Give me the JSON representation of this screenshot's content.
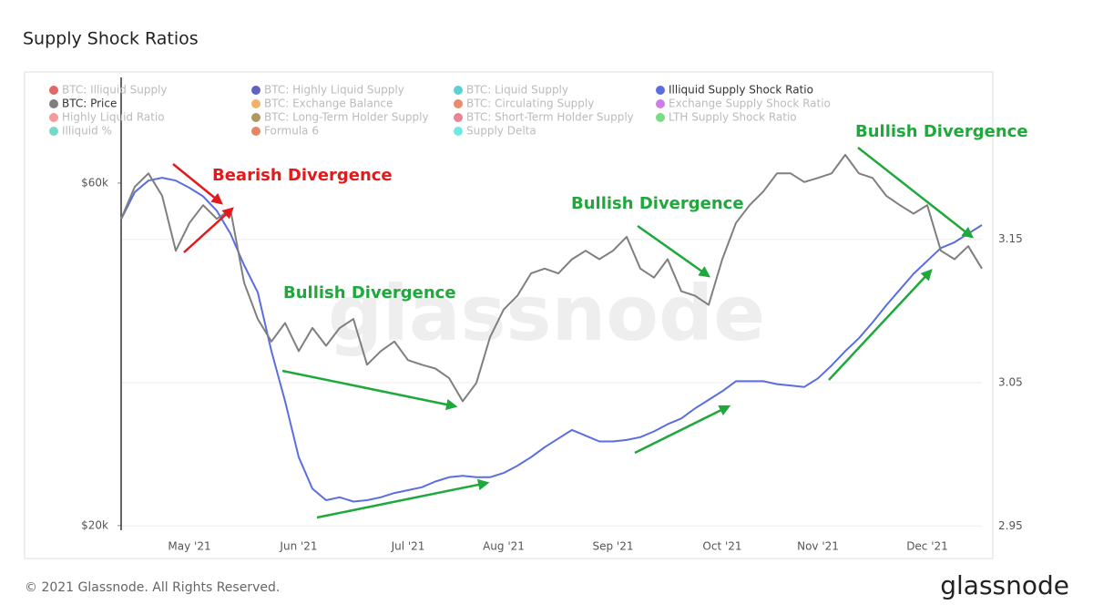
{
  "chart_data": {
    "type": "line",
    "title": "Supply Shock Ratios",
    "categories": [
      null,
      null,
      null,
      null,
      null,
      "May '21",
      null,
      null,
      null,
      null,
      null,
      null,
      null,
      "Jun '21",
      null,
      null,
      null,
      null,
      null,
      null,
      null,
      "Jul '21",
      null,
      null,
      null,
      null,
      null,
      null,
      "Aug '21",
      null,
      null,
      null,
      null,
      null,
      null,
      null,
      "Sep '21",
      null,
      null,
      null,
      null,
      null,
      null,
      null,
      "Oct '21",
      null,
      null,
      null,
      null,
      null,
      null,
      "Nov '21",
      null,
      null,
      null,
      null,
      null,
      null,
      null,
      "Dec '21",
      null,
      null,
      null,
      null
    ],
    "series": [
      {
        "name": "BTC: Illiquid Supply",
        "color": "#d62728",
        "hidden": true
      },
      {
        "name": "BTC: Highly Liquid Supply",
        "color": "#1f1fa8",
        "hidden": true
      },
      {
        "name": "BTC: Liquid Supply",
        "color": "#17bec0",
        "hidden": true
      },
      {
        "name": "Illiquid Supply Shock Ratio",
        "color": "#5b6ee1",
        "axis": "y2",
        "values": [
          3.164,
          3.183,
          3.191,
          3.193,
          3.191,
          3.186,
          3.18,
          3.17,
          3.154,
          3.132,
          3.113,
          3.072,
          3.037,
          2.998,
          2.976,
          2.968,
          2.97,
          2.967,
          2.968,
          2.97,
          2.973,
          2.975,
          2.977,
          2.981,
          2.984,
          2.985,
          2.984,
          2.984,
          2.987,
          2.992,
          2.998,
          3.005,
          3.011,
          3.017,
          3.013,
          3.009,
          3.009,
          3.01,
          3.012,
          3.016,
          3.021,
          3.025,
          3.032,
          3.038,
          3.044,
          3.051,
          3.051,
          3.051,
          3.049,
          3.048,
          3.047,
          3.053,
          3.062,
          3.072,
          3.081,
          3.092,
          3.104,
          3.115,
          3.126,
          3.135,
          3.144,
          3.148,
          3.154,
          3.16
        ]
      },
      {
        "name": "BTC: Price",
        "color": "#7f7f7f",
        "axis": "y",
        "values": [
          53500,
          59300,
          61900,
          57600,
          48300,
          52800,
          55900,
          53500,
          55100,
          43600,
          38800,
          36100,
          38300,
          35000,
          37700,
          35600,
          37700,
          38800,
          33500,
          35000,
          36100,
          34000,
          33500,
          33100,
          32100,
          29800,
          31600,
          36600,
          40000,
          41800,
          44900,
          45600,
          44900,
          47000,
          48300,
          47000,
          48300,
          50500,
          45600,
          44300,
          47000,
          42400,
          41800,
          40600,
          47000,
          52800,
          55900,
          58400,
          61900,
          61900,
          60200,
          61000,
          61900,
          65700,
          61900,
          61000,
          57600,
          55900,
          54400,
          55900,
          48300,
          47000,
          49000,
          45600
        ]
      },
      {
        "name": "BTC: Exchange Balance",
        "color": "#f28e2b",
        "hidden": true
      },
      {
        "name": "BTC: Circulating Supply",
        "color": "#e15a2b",
        "hidden": true
      },
      {
        "name": "Exchange Supply Shock Ratio",
        "color": "#b845e0",
        "hidden": true
      },
      {
        "name": "Highly Liquid Ratio",
        "color": "#f07070",
        "hidden": true
      },
      {
        "name": "BTC: Long-Term Holder Supply",
        "color": "#8c6d1f",
        "hidden": true
      },
      {
        "name": "BTC: Short-Term Holder Supply",
        "color": "#e0506a",
        "hidden": true
      },
      {
        "name": "LTH Supply Shock Ratio",
        "color": "#3fd04f",
        "hidden": true
      },
      {
        "name": "Illiquid %",
        "color": "#3cc9b0",
        "hidden": true
      },
      {
        "name": "Formula 6",
        "color": "#d9531e",
        "hidden": true
      },
      {
        "name": "Supply Delta",
        "color": "#2ee0d8",
        "hidden": true
      }
    ],
    "ylog": true,
    "ylim": [
      19700,
      84200
    ],
    "yticks": [
      {
        "value": 20000,
        "label": "$20k"
      },
      {
        "value": 60000,
        "label": "$60k"
      }
    ],
    "y2lim": [
      2.947,
      3.263
    ],
    "y2ticks": [
      2.95,
      3.05,
      3.15
    ],
    "grid": true,
    "annotations": [
      {
        "text": "Bearish Divergence",
        "color": "#e31a1c"
      },
      {
        "text": "Bullish Divergence",
        "color": "#1fa83c"
      },
      {
        "text": "Bullish Divergence",
        "color": "#1fa83c"
      },
      {
        "text": "Bullish Divergence",
        "color": "#1fa83c"
      }
    ],
    "watermark": "glassnode"
  },
  "footer": {
    "copyright": "© 2021 Glassnode. All Rights Reserved.",
    "logo": "glassnode"
  }
}
